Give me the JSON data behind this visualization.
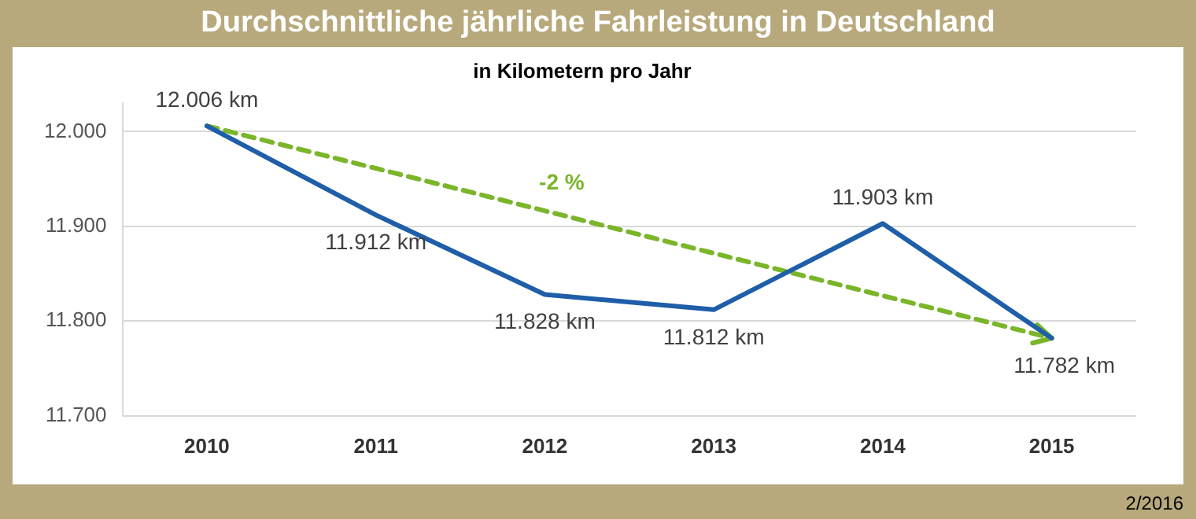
{
  "chart_data": {
    "type": "line",
    "title": "Durchschnittliche jährliche Fahrleistung in Deutschland",
    "subtitle": "in Kilometern pro Jahr",
    "categories": [
      "2010",
      "2011",
      "2012",
      "2013",
      "2014",
      "2015"
    ],
    "series": [
      {
        "color": "#1f5ea8",
        "values": [
          12006,
          11912,
          11828,
          11812,
          11903,
          11782
        ],
        "value_labels": [
          "12.006 km",
          "11.912 km",
          "11.828 km",
          "11.812 km",
          "11.903 km",
          "11.782 km"
        ]
      },
      {
        "type": "line",
        "color": "#7ab52a",
        "line_style": "dashed",
        "values": [
          12006,
          null,
          null,
          null,
          null,
          11782
        ]
      }
    ],
    "ylim": [
      11700,
      12030
    ],
    "yticks": [
      {
        "value": 11700,
        "label": "11.700"
      },
      {
        "value": 11800,
        "label": "11.800"
      },
      {
        "value": 11900,
        "label": "11.900"
      },
      {
        "value": 12000,
        "label": "12.000"
      }
    ],
    "grid": "y",
    "legend": false,
    "marker": "none",
    "annotations": [
      "-2 %",
      "2/2016"
    ]
  }
}
